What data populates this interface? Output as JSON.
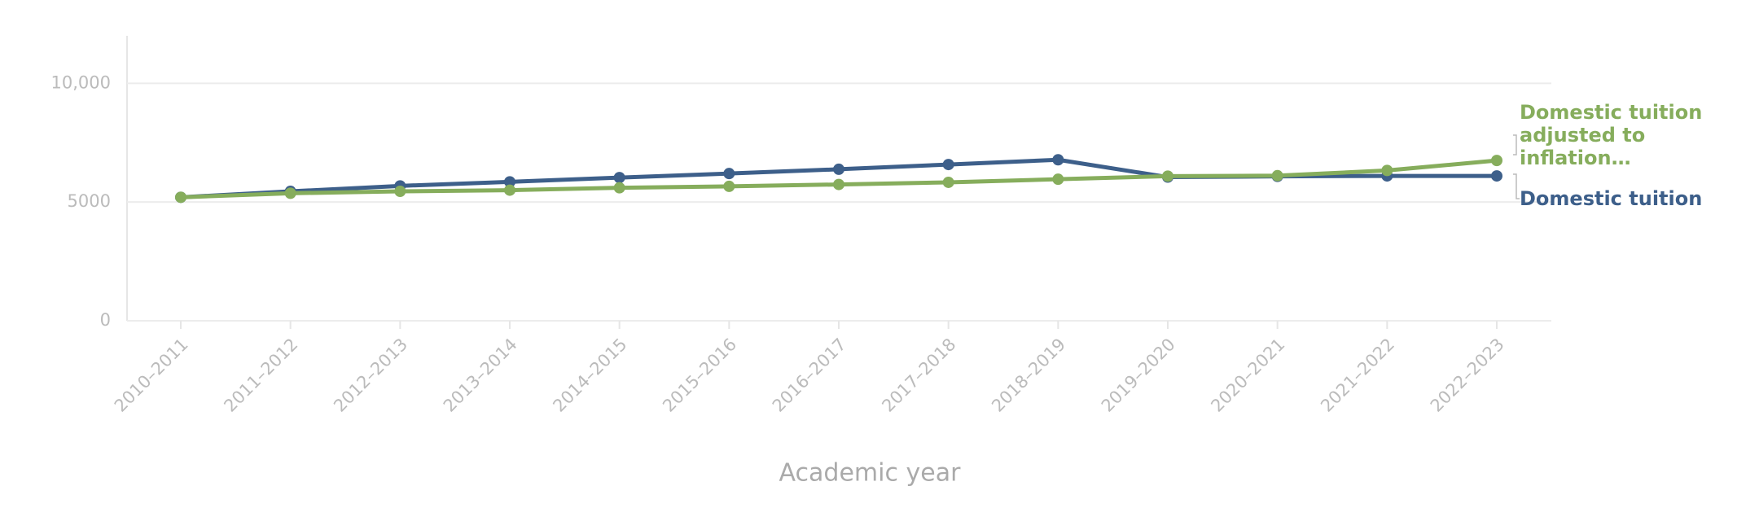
{
  "chart_data": {
    "type": "line",
    "x_label": "Academic year",
    "categories": [
      "2010–2011",
      "2011–2012",
      "2012–2013",
      "2013–2014",
      "2014–2015",
      "2015–2016",
      "2016–2017",
      "2017–2018",
      "2018–2019",
      "2019–2020",
      "2020–2021",
      "2021–2022",
      "2022–2023"
    ],
    "series": [
      {
        "name": "Domestic tuition",
        "color": "#3d5f8a",
        "values": [
          5200,
          5450,
          5680,
          5850,
          6030,
          6200,
          6380,
          6580,
          6780,
          6050,
          6080,
          6100,
          6100
        ]
      },
      {
        "name": "Domestic tuition adjusted to inflation…",
        "color": "#86ad5c",
        "values": [
          5200,
          5370,
          5450,
          5500,
          5600,
          5660,
          5740,
          5830,
          5960,
          6090,
          6110,
          6330,
          6750
        ]
      }
    ],
    "ylim": [
      0,
      12000
    ],
    "yticks": [
      0,
      5000,
      {
        "value": 10000,
        "label": "10,000"
      }
    ],
    "grid": true
  }
}
